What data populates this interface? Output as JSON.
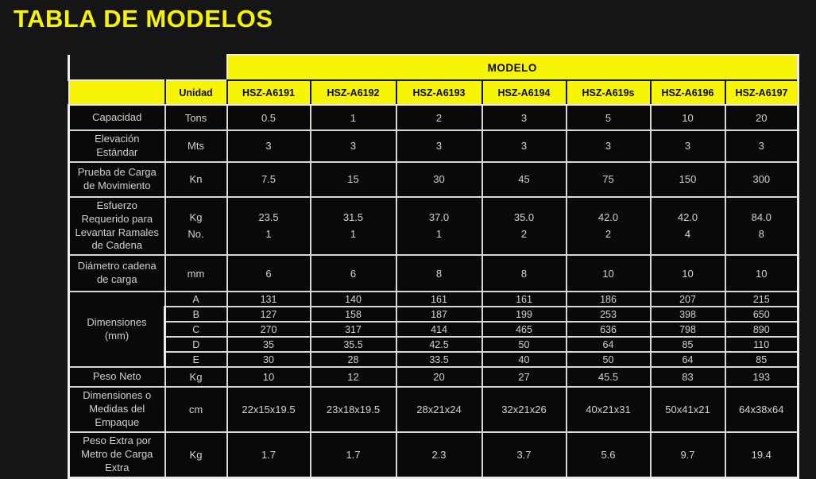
{
  "page": {
    "title": "TABLA DE MODELOS",
    "background_color": "#151515",
    "accent_yellow": "#f7f406",
    "cell_background": "#090909",
    "cell_text_color": "#d2d2d2",
    "grid_line_color": "#d9d9d9"
  },
  "table": {
    "modelo_header": "MODELO",
    "unidad_header": "Unidad",
    "models": [
      "HSZ-A6191",
      "HSZ-A6192",
      "HSZ-A6193",
      "HSZ-A6194",
      "HSZ-A619s",
      "HSZ-A6196",
      "HSZ-A6197"
    ],
    "rows": [
      {
        "label": "Capacidad",
        "unit": "Tons",
        "values": [
          "0.5",
          "1",
          "2",
          "3",
          "5",
          "10",
          "20"
        ]
      },
      {
        "label": "Elevación Estándar",
        "unit": "Mts",
        "values": [
          "3",
          "3",
          "3",
          "3",
          "3",
          "3",
          "3"
        ]
      },
      {
        "label": "Prueba de Carga de Movimiento",
        "unit": "Kn",
        "values": [
          "7.5",
          "15",
          "30",
          "45",
          "75",
          "150",
          "300"
        ]
      },
      {
        "label": "Esfuerzo Requerido para Levantar Ramales de Cadena",
        "unit": [
          "Kg",
          "No."
        ],
        "values": [
          [
            "23.5",
            "1"
          ],
          [
            "31.5",
            "1"
          ],
          [
            "37.0",
            "1"
          ],
          [
            "35.0",
            "2"
          ],
          [
            "42.0",
            "2"
          ],
          [
            "42.0",
            "4"
          ],
          [
            "84.0",
            "8"
          ]
        ]
      },
      {
        "label": "Diámetro cadena de carga",
        "unit": "mm",
        "values": [
          "6",
          "6",
          "8",
          "8",
          "10",
          "10",
          "10"
        ]
      },
      {
        "label": "Dimensiones (mm)",
        "subrows": [
          {
            "unit": "A",
            "values": [
              "131",
              "140",
              "161",
              "161",
              "186",
              "207",
              "215"
            ]
          },
          {
            "unit": "B",
            "values": [
              "127",
              "158",
              "187",
              "199",
              "253",
              "398",
              "650"
            ]
          },
          {
            "unit": "C",
            "values": [
              "270",
              "317",
              "414",
              "465",
              "636",
              "798",
              "890"
            ]
          },
          {
            "unit": "D",
            "values": [
              "35",
              "35.5",
              "42.5",
              "50",
              "64",
              "85",
              "110"
            ]
          },
          {
            "unit": "E",
            "values": [
              "30",
              "28",
              "33.5",
              "40",
              "50",
              "64",
              "85"
            ]
          }
        ]
      },
      {
        "label": "Peso Neto",
        "unit": "Kg",
        "values": [
          "10",
          "12",
          "20",
          "27",
          "45.5",
          "83",
          "193"
        ]
      },
      {
        "label": "Dimensiones o Medidas del Empaque",
        "unit": "cm",
        "values": [
          "22x15x19.5",
          "23x18x19.5",
          "28x21x24",
          "32x21x26",
          "40x21x31",
          "50x41x21",
          "64x38x64"
        ]
      },
      {
        "label": "Peso Extra por Metro de Carga Extra",
        "unit": "Kg",
        "values": [
          "1.7",
          "1.7",
          "2.3",
          "3.7",
          "5.6",
          "9.7",
          "19.4"
        ]
      }
    ]
  }
}
